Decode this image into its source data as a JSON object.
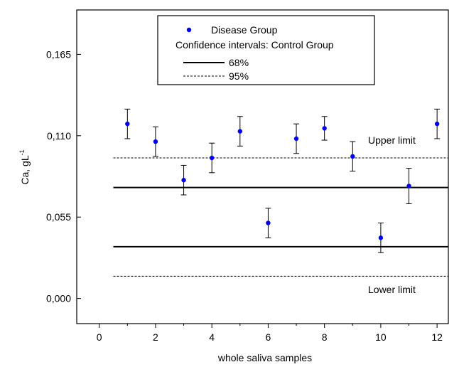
{
  "chart_data": {
    "type": "scatter",
    "xlabel": "whole saliva samples",
    "ylabel": "Ca, gL",
    "ylabel_superscript": "-1",
    "xlim": [
      -0.8,
      12.4
    ],
    "ylim": [
      -0.017,
      0.195
    ],
    "x_ticks": [
      0,
      2,
      4,
      6,
      8,
      10,
      12
    ],
    "x_tick_labels": [
      "0",
      "2",
      "4",
      "6",
      "8",
      "10",
      "12"
    ],
    "y_ticks": [
      0.0,
      0.055,
      0.11,
      0.165
    ],
    "y_tick_labels": [
      "0,000",
      "0,055",
      "0,110",
      "0,165"
    ],
    "series": [
      {
        "name": "Disease Group",
        "color": "#0000ee",
        "x": [
          1,
          2,
          3,
          4,
          5,
          6,
          7,
          8,
          9,
          10,
          11,
          12
        ],
        "y": [
          0.118,
          0.106,
          0.08,
          0.095,
          0.113,
          0.051,
          0.108,
          0.115,
          0.096,
          0.041,
          0.076,
          0.118
        ],
        "err": [
          0.01,
          0.01,
          0.01,
          0.01,
          0.01,
          0.01,
          0.01,
          0.008,
          0.01,
          0.01,
          0.012,
          0.01
        ]
      }
    ],
    "legend": {
      "title": "Confidence intervals: Control Group",
      "entries": [
        "Disease Group",
        "68%",
        "95%"
      ],
      "placement": "top-center"
    },
    "reference_lines": [
      {
        "label": "68%",
        "style": "solid",
        "values": [
          0.075,
          0.035
        ]
      },
      {
        "label": "95%",
        "style": "dashed",
        "values": [
          0.095,
          0.015
        ]
      }
    ],
    "reference_x_range": [
      0.5,
      12.4
    ],
    "annotations": [
      {
        "text": "Upper limit",
        "x": 10.6,
        "y": 0.105
      },
      {
        "text": "Lower limit",
        "x": 10.6,
        "y": 0.001
      }
    ],
    "grid": false
  }
}
